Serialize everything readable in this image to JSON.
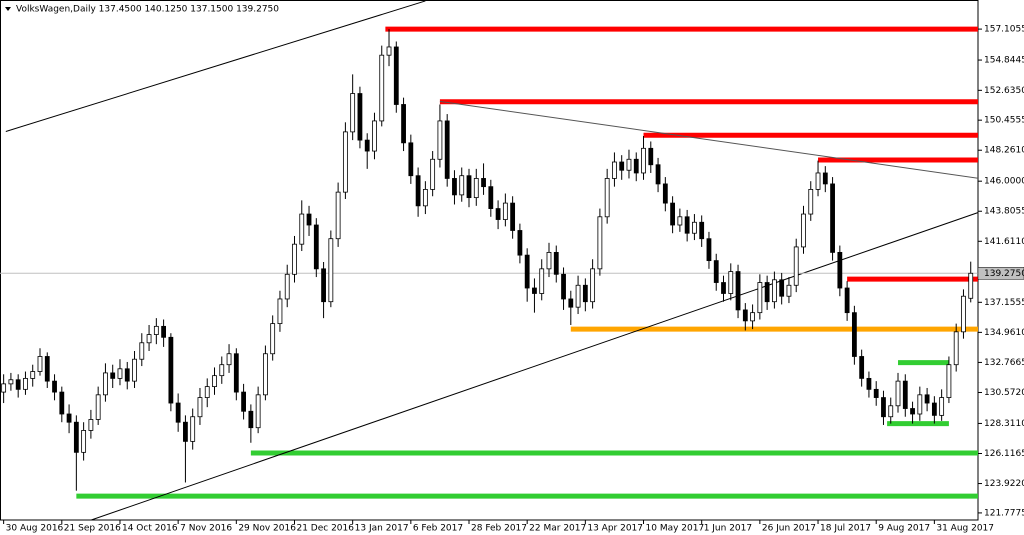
{
  "chart_data": {
    "type": "candlestick",
    "title": "VolksWagen,Daily  137.4500 140.1250 137.1500 139.2750",
    "ylim": [
      121.26,
      159.23
    ],
    "xlim": [
      -0.5,
      134
    ],
    "yticks": [
      157.1055,
      154.8445,
      {
        "value": 152.635,
        "label": "152.6350"
      },
      150.4555,
      {
        "value": 148.261,
        "label": "148.2610"
      },
      {
        "value": 146,
        "label": "146.0000"
      },
      143.8055,
      {
        "value": 141.611,
        "label": "141.6110"
      },
      137.1555,
      {
        "value": 134.961,
        "label": "134.9610"
      },
      132.7665,
      {
        "value": 130.572,
        "label": "130.5720"
      },
      {
        "value": 128.311,
        "label": "128.3110"
      },
      126.1165,
      {
        "value": 123.922,
        "label": "123.9220"
      },
      121.7775
    ],
    "last_price": {
      "value": 139.275,
      "label": "139.2750"
    },
    "xticks": [
      {
        "value": 0,
        "label": "30 Aug 2016"
      },
      {
        "value": 8,
        "label": "21 Sep 2016"
      },
      {
        "value": 16,
        "label": "14 Oct 2016"
      },
      {
        "value": 24,
        "label": "7 Nov 2016"
      },
      {
        "value": 32,
        "label": "29 Nov 2016"
      },
      {
        "value": 40,
        "label": "21 Dec 2016"
      },
      {
        "value": 48,
        "label": "13 Jan 2017"
      },
      {
        "value": 56,
        "label": "6 Feb 2017"
      },
      {
        "value": 64,
        "label": "28 Feb 2017"
      },
      {
        "value": 72,
        "label": "22 Mar 2017"
      },
      {
        "value": 80,
        "label": "13 Apr 2017"
      },
      {
        "value": 88,
        "label": "10 May 2017"
      },
      {
        "value": 96,
        "label": "1 Jun 2017"
      },
      {
        "value": 104,
        "label": "26 Jun 2017"
      },
      {
        "value": 112,
        "label": "18 Jul 2017"
      },
      {
        "value": 120,
        "label": "9 Aug 2017"
      },
      {
        "value": 128,
        "label": "31 Aug 2017"
      }
    ],
    "candles": [
      [
        130.6,
        131.9,
        129.8,
        131.2
      ],
      [
        131.2,
        132.0,
        130.7,
        131.5
      ],
      [
        131.5,
        131.9,
        130.2,
        130.8
      ],
      [
        130.8,
        132.1,
        130.4,
        131.6
      ],
      [
        131.6,
        132.6,
        131.0,
        132.1
      ],
      [
        132.1,
        133.8,
        131.8,
        133.2
      ],
      [
        133.2,
        133.5,
        130.9,
        131.4
      ],
      [
        131.4,
        131.9,
        130.0,
        130.6
      ],
      [
        130.6,
        131.0,
        128.4,
        129.0
      ],
      [
        129.0,
        129.7,
        127.6,
        128.4
      ],
      [
        128.4,
        128.9,
        123.4,
        126.2
      ],
      [
        126.2,
        128.4,
        125.6,
        127.8
      ],
      [
        127.8,
        129.3,
        127.2,
        128.6
      ],
      [
        128.6,
        131.0,
        128.2,
        130.4
      ],
      [
        130.4,
        132.7,
        129.9,
        132.0
      ],
      [
        132.0,
        132.6,
        130.9,
        131.6
      ],
      [
        131.6,
        133.0,
        131.1,
        132.3
      ],
      [
        132.3,
        132.8,
        130.8,
        131.4
      ],
      [
        131.4,
        133.6,
        130.9,
        133.0
      ],
      [
        133.0,
        134.9,
        132.5,
        134.2
      ],
      [
        134.2,
        135.5,
        133.6,
        134.8
      ],
      [
        134.8,
        136.0,
        134.1,
        135.4
      ],
      [
        135.4,
        135.9,
        133.9,
        134.6
      ],
      [
        134.6,
        134.9,
        129.2,
        129.8
      ],
      [
        129.8,
        130.5,
        127.7,
        128.4
      ],
      [
        128.4,
        128.9,
        124.0,
        127.0
      ],
      [
        127.0,
        129.4,
        126.4,
        128.8
      ],
      [
        128.8,
        130.9,
        128.2,
        130.2
      ],
      [
        130.2,
        131.6,
        129.5,
        131.0
      ],
      [
        131.0,
        132.4,
        130.4,
        131.8
      ],
      [
        131.8,
        133.2,
        131.2,
        132.6
      ],
      [
        132.6,
        134.1,
        132.0,
        133.4
      ],
      [
        133.4,
        133.8,
        130.0,
        130.6
      ],
      [
        130.6,
        131.2,
        128.6,
        129.2
      ],
      [
        129.2,
        129.7,
        126.9,
        128.0
      ],
      [
        128.0,
        131.0,
        127.6,
        130.4
      ],
      [
        130.4,
        134.0,
        130.0,
        133.4
      ],
      [
        133.4,
        136.2,
        132.9,
        135.6
      ],
      [
        135.6,
        138.0,
        135.0,
        137.4
      ],
      [
        137.4,
        139.9,
        136.8,
        139.2
      ],
      [
        139.2,
        142.0,
        138.6,
        141.4
      ],
      [
        141.4,
        144.6,
        140.9,
        143.6
      ],
      [
        143.6,
        144.2,
        142.0,
        142.8
      ],
      [
        142.8,
        143.3,
        139.0,
        139.6
      ],
      [
        139.6,
        140.1,
        136.0,
        137.2
      ],
      [
        137.2,
        142.4,
        136.8,
        141.8
      ],
      [
        141.8,
        145.9,
        141.2,
        145.2
      ],
      [
        145.2,
        150.3,
        144.7,
        149.6
      ],
      [
        149.6,
        153.8,
        149.0,
        152.4
      ],
      [
        152.4,
        152.9,
        148.4,
        149.0
      ],
      [
        149.0,
        149.5,
        146.9,
        148.2
      ],
      [
        148.2,
        151.0,
        147.6,
        150.4
      ],
      [
        150.4,
        155.9,
        150.0,
        155.2
      ],
      [
        155.2,
        157.1,
        154.4,
        155.8
      ],
      [
        155.8,
        156.2,
        151.0,
        151.6
      ],
      [
        151.6,
        152.1,
        148.2,
        148.8
      ],
      [
        148.8,
        149.4,
        145.8,
        146.4
      ],
      [
        146.4,
        147.0,
        143.4,
        144.2
      ],
      [
        144.2,
        146.0,
        143.6,
        145.4
      ],
      [
        145.4,
        148.2,
        144.9,
        147.6
      ],
      [
        147.6,
        151.6,
        147.0,
        150.4
      ],
      [
        150.4,
        150.9,
        145.6,
        146.2
      ],
      [
        146.2,
        146.8,
        144.3,
        145.0
      ],
      [
        145.0,
        147.0,
        144.5,
        146.4
      ],
      [
        146.4,
        146.9,
        144.1,
        144.8
      ],
      [
        144.8,
        146.9,
        144.2,
        146.2
      ],
      [
        146.2,
        147.3,
        145.0,
        145.6
      ],
      [
        145.6,
        146.1,
        143.4,
        144.0
      ],
      [
        144.0,
        144.6,
        142.5,
        143.2
      ],
      [
        143.2,
        145.1,
        142.7,
        144.4
      ],
      [
        144.4,
        144.9,
        141.8,
        142.4
      ],
      [
        142.4,
        142.9,
        140.0,
        140.6
      ],
      [
        140.6,
        141.1,
        137.2,
        138.2
      ],
      [
        138.2,
        138.9,
        136.4,
        137.8
      ],
      [
        137.8,
        140.3,
        137.3,
        139.6
      ],
      [
        139.6,
        141.5,
        139.0,
        140.8
      ],
      [
        140.8,
        141.3,
        138.6,
        139.2
      ],
      [
        139.2,
        139.7,
        136.6,
        137.4
      ],
      [
        137.4,
        138.0,
        135.5,
        136.8
      ],
      [
        136.8,
        139.1,
        136.3,
        138.4
      ],
      [
        138.4,
        138.9,
        136.5,
        137.2
      ],
      [
        137.2,
        140.3,
        136.7,
        139.6
      ],
      [
        139.6,
        144.0,
        139.1,
        143.4
      ],
      [
        143.4,
        146.9,
        142.9,
        146.2
      ],
      [
        146.2,
        148.1,
        145.6,
        147.4
      ],
      [
        147.4,
        147.9,
        146.1,
        146.8
      ],
      [
        146.8,
        148.3,
        146.2,
        147.6
      ],
      [
        147.6,
        148.1,
        146.0,
        146.6
      ],
      [
        146.6,
        149.3,
        146.1,
        148.4
      ],
      [
        148.4,
        148.9,
        146.6,
        147.2
      ],
      [
        147.2,
        147.7,
        145.2,
        145.8
      ],
      [
        145.8,
        146.3,
        143.8,
        144.4
      ],
      [
        144.4,
        144.9,
        142.2,
        142.8
      ],
      [
        142.8,
        144.0,
        142.3,
        143.4
      ],
      [
        143.4,
        143.9,
        141.6,
        142.2
      ],
      [
        142.2,
        143.6,
        141.7,
        143.0
      ],
      [
        143.0,
        143.5,
        141.2,
        141.8
      ],
      [
        141.8,
        142.3,
        139.6,
        140.2
      ],
      [
        140.2,
        140.7,
        138.0,
        138.6
      ],
      [
        138.6,
        139.1,
        137.2,
        137.8
      ],
      [
        137.8,
        140.0,
        137.3,
        139.4
      ],
      [
        139.4,
        139.9,
        136.0,
        136.6
      ],
      [
        136.6,
        137.1,
        135.1,
        135.8
      ],
      [
        135.8,
        137.0,
        135.2,
        136.4
      ],
      [
        136.4,
        139.2,
        135.9,
        138.6
      ],
      [
        138.6,
        139.1,
        136.6,
        137.2
      ],
      [
        137.2,
        139.4,
        136.7,
        138.8
      ],
      [
        138.8,
        139.3,
        137.0,
        137.6
      ],
      [
        137.6,
        139.0,
        137.1,
        138.4
      ],
      [
        138.4,
        141.8,
        137.9,
        141.2
      ],
      [
        141.2,
        144.2,
        140.7,
        143.6
      ],
      [
        143.6,
        146.0,
        143.1,
        145.4
      ],
      [
        145.4,
        147.5,
        144.9,
        146.6
      ],
      [
        146.6,
        147.1,
        145.2,
        145.8
      ],
      [
        145.8,
        146.3,
        140.2,
        140.8
      ],
      [
        140.8,
        141.3,
        137.6,
        138.2
      ],
      [
        138.2,
        138.7,
        135.8,
        136.4
      ],
      [
        136.4,
        136.9,
        132.6,
        133.2
      ],
      [
        133.2,
        133.7,
        131.0,
        131.6
      ],
      [
        131.6,
        132.1,
        130.2,
        130.8
      ],
      [
        130.8,
        131.4,
        129.6,
        130.2
      ],
      [
        130.2,
        130.7,
        128.2,
        128.8
      ],
      [
        128.8,
        130.2,
        128.3,
        129.6
      ],
      [
        129.6,
        132.0,
        129.1,
        131.4
      ],
      [
        131.4,
        131.9,
        128.8,
        129.4
      ],
      [
        129.4,
        129.9,
        128.3,
        129.0
      ],
      [
        129.0,
        131.0,
        128.5,
        130.4
      ],
      [
        130.4,
        130.9,
        129.2,
        129.8
      ],
      [
        129.8,
        130.3,
        128.3,
        128.9
      ],
      [
        128.9,
        130.8,
        128.5,
        130.2
      ],
      [
        130.2,
        133.2,
        129.8,
        132.6
      ],
      [
        132.6,
        135.6,
        132.1,
        135.0
      ],
      [
        135.0,
        138.1,
        134.5,
        137.6
      ],
      [
        137.45,
        140.125,
        137.15,
        139.275
      ]
    ],
    "levels": [
      {
        "price": 157.1055,
        "start": 52.5,
        "color": "#ff0000"
      },
      {
        "price": 151.8,
        "start": 60,
        "color": "#ff0000"
      },
      {
        "price": 149.35,
        "start": 88,
        "color": "#ff0000"
      },
      {
        "price": 147.55,
        "start": 112,
        "color": "#ff0000"
      },
      {
        "price": 138.85,
        "start": 116,
        "color": "#ff0000"
      },
      {
        "price": 135.2,
        "start": 78,
        "color": "#ffa500"
      },
      {
        "price": 132.75,
        "start": 123,
        "end": 130,
        "color": "#32cd32"
      },
      {
        "price": 128.3,
        "start": 121.5,
        "end": 130,
        "color": "#32cd32"
      },
      {
        "price": 126.15,
        "start": 34,
        "color": "#32cd32"
      },
      {
        "price": 123.0,
        "start": 10,
        "color": "#32cd32"
      }
    ],
    "trendlines": [
      {
        "from": [
          0.3,
          149.63
        ],
        "to": [
          58,
          159.16
        ],
        "color": "#000000"
      },
      {
        "from": [
          12,
          121.25
        ],
        "to": [
          138.3,
          144.5
        ],
        "color": "#000000"
      },
      {
        "from": [
          60,
          151.83
        ],
        "to": [
          138.3,
          145.89
        ],
        "color": "#555555"
      }
    ],
    "bull_color": "#ffffff",
    "bear_color": "#000000"
  }
}
